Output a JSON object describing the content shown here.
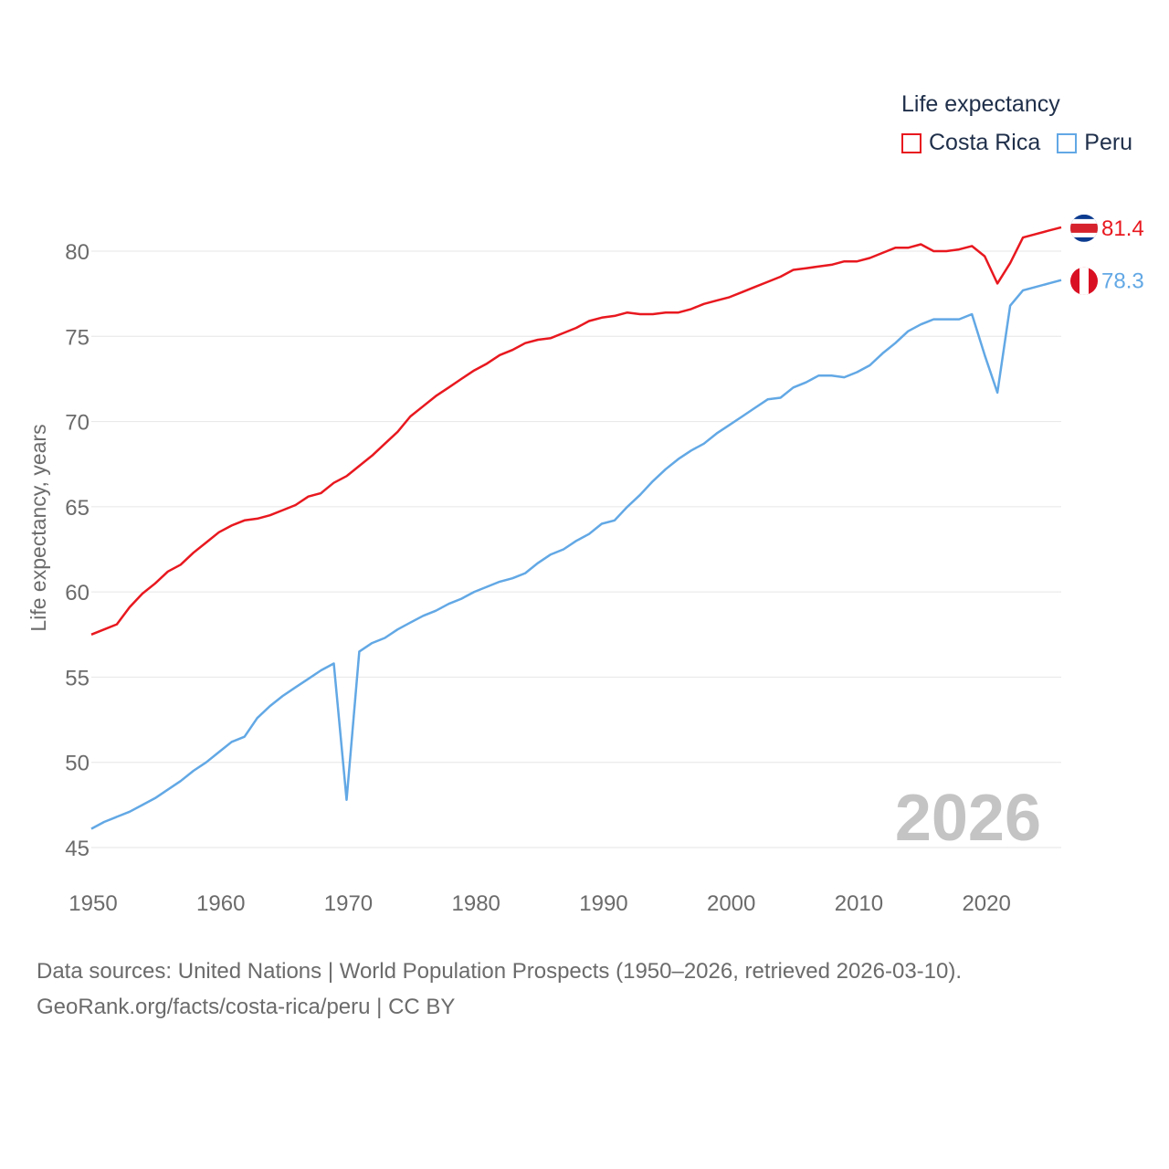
{
  "legend": {
    "title": "Life expectancy",
    "items": [
      {
        "label": "Costa Rica",
        "color": "#e8181f"
      },
      {
        "label": "Peru",
        "color": "#62a8e5"
      }
    ]
  },
  "source": {
    "line1": "Data sources: United Nations | World Population Prospects (1950–2026, retrieved 2026-03-10).",
    "line2": "GeoRank.org/facts/costa-rica/peru | CC BY"
  },
  "chart_data": {
    "type": "line",
    "title": "",
    "xlabel": "",
    "ylabel": "Life expectancy, years",
    "watermark": "2026",
    "xlim": [
      1950,
      2026
    ],
    "ylim": [
      44,
      83
    ],
    "x_ticks": [
      1950,
      1960,
      1970,
      1980,
      1990,
      2000,
      2010,
      2020
    ],
    "y_ticks": [
      45,
      50,
      55,
      60,
      65,
      70,
      75,
      80
    ],
    "grid": true,
    "x": [
      1950,
      1951,
      1952,
      1953,
      1954,
      1955,
      1956,
      1957,
      1958,
      1959,
      1960,
      1961,
      1962,
      1963,
      1964,
      1965,
      1966,
      1967,
      1968,
      1969,
      1970,
      1971,
      1972,
      1973,
      1974,
      1975,
      1976,
      1977,
      1978,
      1979,
      1980,
      1981,
      1982,
      1983,
      1984,
      1985,
      1986,
      1987,
      1988,
      1989,
      1990,
      1991,
      1992,
      1993,
      1994,
      1995,
      1996,
      1997,
      1998,
      1999,
      2000,
      2001,
      2002,
      2003,
      2004,
      2005,
      2006,
      2007,
      2008,
      2009,
      2010,
      2011,
      2012,
      2013,
      2014,
      2015,
      2016,
      2017,
      2018,
      2019,
      2020,
      2021,
      2022,
      2023,
      2024,
      2025,
      2026
    ],
    "series": [
      {
        "name": "Costa Rica",
        "color": "#e8181f",
        "end_label": "81.4",
        "values": [
          57.5,
          57.8,
          58.1,
          59.1,
          59.9,
          60.5,
          61.2,
          61.6,
          62.3,
          62.9,
          63.5,
          63.9,
          64.2,
          64.3,
          64.5,
          64.8,
          65.1,
          65.6,
          65.8,
          66.4,
          66.8,
          67.4,
          68.0,
          68.7,
          69.4,
          70.3,
          70.9,
          71.5,
          72.0,
          72.5,
          73.0,
          73.4,
          73.9,
          74.2,
          74.6,
          74.8,
          74.9,
          75.2,
          75.5,
          75.9,
          76.1,
          76.2,
          76.4,
          76.3,
          76.3,
          76.4,
          76.4,
          76.6,
          76.9,
          77.1,
          77.3,
          77.6,
          77.9,
          78.2,
          78.5,
          78.9,
          79.0,
          79.1,
          79.2,
          79.4,
          79.4,
          79.6,
          79.9,
          80.2,
          80.2,
          80.4,
          80.0,
          80.0,
          80.1,
          80.3,
          79.7,
          78.1,
          79.3,
          80.8,
          81.0,
          81.2,
          81.4
        ]
      },
      {
        "name": "Peru",
        "color": "#62a8e5",
        "end_label": "78.3",
        "values": [
          46.1,
          46.5,
          46.8,
          47.1,
          47.5,
          47.9,
          48.4,
          48.9,
          49.5,
          50.0,
          50.6,
          51.2,
          51.5,
          52.6,
          53.3,
          53.9,
          54.4,
          54.9,
          55.4,
          55.8,
          47.8,
          56.5,
          57.0,
          57.3,
          57.8,
          58.2,
          58.6,
          58.9,
          59.3,
          59.6,
          60.0,
          60.3,
          60.6,
          60.8,
          61.1,
          61.7,
          62.2,
          62.5,
          63.0,
          63.4,
          64.0,
          64.2,
          65.0,
          65.7,
          66.5,
          67.2,
          67.8,
          68.3,
          68.7,
          69.3,
          69.8,
          70.3,
          70.8,
          71.3,
          71.4,
          72.0,
          72.3,
          72.7,
          72.7,
          72.6,
          72.9,
          73.3,
          74.0,
          74.6,
          75.3,
          75.7,
          76.0,
          76.0,
          76.0,
          76.3,
          73.9,
          71.7,
          76.8,
          77.7,
          77.9,
          78.1,
          78.3
        ]
      }
    ]
  }
}
